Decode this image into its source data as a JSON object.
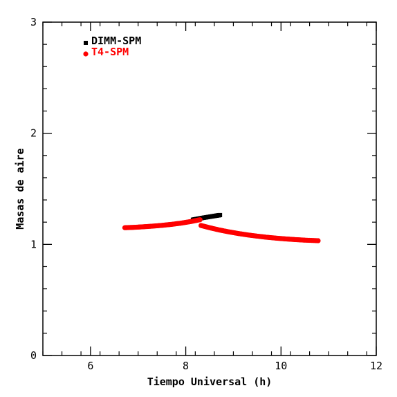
{
  "chart_data": {
    "type": "scatter",
    "title": "",
    "xlabel": "Tiempo Universal (h)",
    "ylabel": "Masas de aire",
    "xlim": [
      5,
      12
    ],
    "ylim": [
      0,
      3
    ],
    "x_major_ticks": [
      6,
      8,
      10,
      12
    ],
    "y_major_ticks": [
      0,
      1,
      2,
      3
    ],
    "x_minor_step": 0.4,
    "y_minor_step": 0.2,
    "grid": false,
    "legend_position": "top-left",
    "series": [
      {
        "name": "DIMM-SPM",
        "color": "#000000",
        "marker": "square",
        "x": [
          8.15,
          8.25,
          8.35,
          8.45,
          8.55,
          8.65,
          8.72
        ],
        "y": [
          1.222,
          1.23,
          1.238,
          1.245,
          1.252,
          1.259,
          1.264
        ]
      },
      {
        "name": "T4-SPM",
        "color": "#ff0000",
        "marker": "circle",
        "x": [
          6.72,
          6.9,
          7.1,
          7.3,
          7.5,
          7.7,
          7.9,
          8.1,
          8.3,
          8.32,
          8.5,
          8.7,
          8.9,
          9.1,
          9.3,
          9.5,
          9.7,
          9.9,
          10.1,
          10.3,
          10.5,
          10.78
        ],
        "y": [
          1.15,
          1.153,
          1.158,
          1.164,
          1.171,
          1.18,
          1.191,
          1.205,
          1.222,
          1.17,
          1.15,
          1.13,
          1.113,
          1.098,
          1.085,
          1.074,
          1.064,
          1.056,
          1.049,
          1.043,
          1.038,
          1.033
        ]
      }
    ]
  }
}
